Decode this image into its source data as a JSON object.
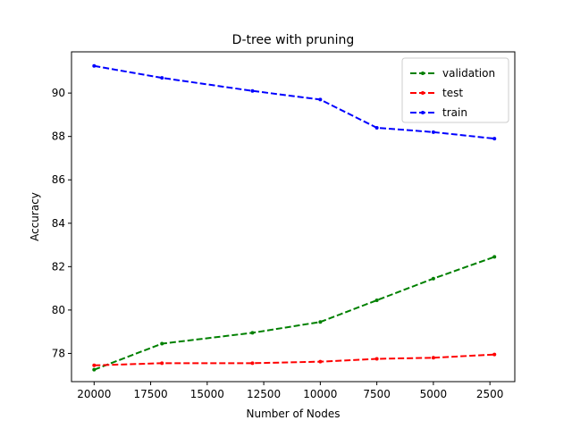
{
  "chart_data": {
    "type": "line",
    "title": "D-tree with pruning",
    "xlabel": "Number of Nodes",
    "ylabel": "Accuracy",
    "x_inverted": true,
    "xlim": [
      21000,
      1400
    ],
    "ylim": [
      76.7,
      91.9
    ],
    "xticks": [
      20000,
      17500,
      15000,
      12500,
      10000,
      7500,
      5000,
      2500
    ],
    "yticks": [
      78,
      80,
      82,
      84,
      86,
      88,
      90
    ],
    "grid": false,
    "legend_position": "top-right",
    "series": [
      {
        "name": "validation",
        "color": "#008000",
        "x": [
          20000,
          17000,
          13000,
          10000,
          7500,
          5000,
          2300
        ],
        "y": [
          77.25,
          78.45,
          78.95,
          79.45,
          80.45,
          81.45,
          82.45
        ]
      },
      {
        "name": "test",
        "color": "#ff0000",
        "x": [
          20000,
          17000,
          13000,
          10000,
          7500,
          5000,
          2300
        ],
        "y": [
          77.45,
          77.55,
          77.55,
          77.62,
          77.75,
          77.8,
          77.95
        ]
      },
      {
        "name": "train",
        "color": "#0000ff",
        "x": [
          20000,
          17000,
          13000,
          10000,
          7500,
          5000,
          2300
        ],
        "y": [
          91.25,
          90.7,
          90.1,
          89.7,
          88.4,
          88.2,
          87.9
        ]
      }
    ]
  }
}
